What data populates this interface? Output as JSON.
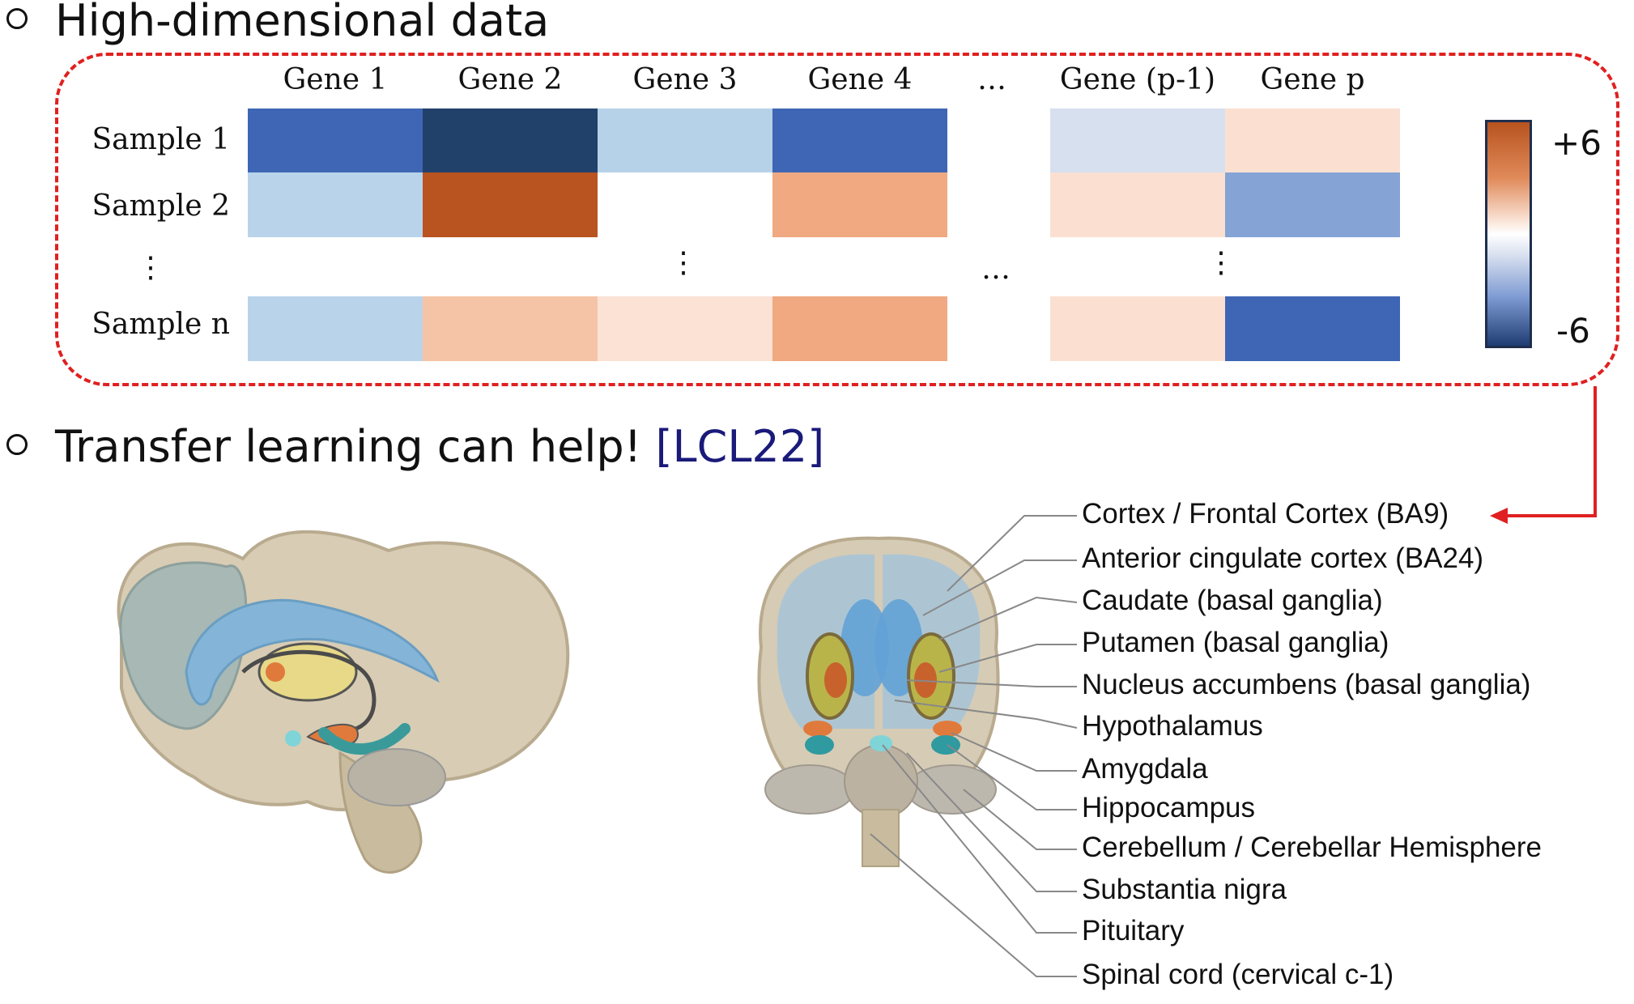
{
  "bullets": {
    "heading_1": "High-dimensional data",
    "heading_2_text": "Transfer learning can help! ",
    "heading_2_cite": "[LCL22]"
  },
  "heatmap": {
    "columns": [
      "Gene 1",
      "Gene 2",
      "Gene 3",
      "Gene 4",
      "…",
      "Gene (p-1)",
      "Gene p"
    ],
    "rows": [
      "Sample 1",
      "Sample 2",
      "⋮",
      "Sample n"
    ],
    "ellipsis_h": "…",
    "ellipsis_v": "⋮",
    "colorbar": {
      "max_label": "+6",
      "min_label": "-6"
    },
    "cell_colors": {
      "sample_1": [
        "#3e66b5",
        "#21416b",
        "#b6d2e8",
        "#3e66b5",
        "#d6e0ef",
        "#fbe0d1"
      ],
      "sample_2": [
        "#b9d4ea",
        "#b9531f",
        "#ffffff",
        "#f0a981",
        "#fbe0d1",
        "#85a3d4"
      ],
      "sample_n": [
        "#b9d4ea",
        "#f5c4a6",
        "#fbe2d5",
        "#f0a981",
        "#fbe0d1",
        "#3e66b5"
      ]
    }
  },
  "brain_regions": [
    "Cortex / Frontal Cortex (BA9)",
    "Anterior cingulate cortex (BA24)",
    "Caudate (basal ganglia)",
    "Putamen (basal ganglia)",
    "Nucleus accumbens (basal ganglia)",
    "Hypothalamus",
    "Amygdala",
    "Hippocampus",
    "Cerebellum / Cerebellar Hemisphere",
    "Substantia nigra",
    "Pituitary",
    "Spinal cord (cervical c-1)"
  ],
  "colors": {
    "accent_red": "#e02020",
    "citation": "#1a1a7a"
  }
}
